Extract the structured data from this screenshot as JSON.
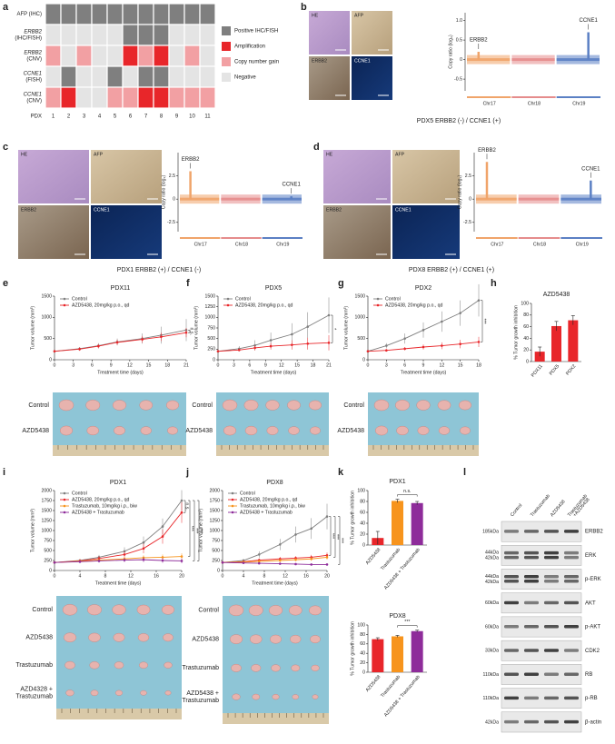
{
  "chart_data": [
    {
      "type": "heatmap",
      "panel": "a",
      "xlabel": "PDX",
      "columns": [
        1,
        2,
        3,
        4,
        5,
        6,
        7,
        8,
        9,
        10,
        11
      ],
      "legend": [
        {
          "label": "Positive IHC/FISH",
          "color": "#7f7f7f"
        },
        {
          "label": "Amplification",
          "color": "#e8262a"
        },
        {
          "label": "Copy number gain",
          "color": "#f2a0a3"
        },
        {
          "label": "Negative",
          "color": "#e4e4e4"
        }
      ],
      "rows": [
        {
          "label": [
            "AFP (IHC)"
          ],
          "values": [
            0,
            0,
            0,
            0,
            0,
            0,
            0,
            0,
            0,
            0,
            0
          ]
        },
        {
          "label": [
            "ERBB2",
            "(IHC/FISH)"
          ],
          "values": [
            3,
            3,
            3,
            3,
            3,
            0,
            0,
            0,
            3,
            3,
            3
          ]
        },
        {
          "label": [
            "ERBB2",
            "(CNV)"
          ],
          "values": [
            2,
            3,
            2,
            3,
            3,
            1,
            2,
            1,
            3,
            2,
            3
          ]
        },
        {
          "label": [
            "CCNE1",
            "(FISH)"
          ],
          "values": [
            3,
            0,
            3,
            3,
            0,
            3,
            0,
            0,
            3,
            3,
            3
          ]
        },
        {
          "label": [
            "CCNE1",
            "(CNV)"
          ],
          "values": [
            2,
            1,
            3,
            3,
            2,
            2,
            1,
            1,
            2,
            2,
            2
          ]
        }
      ]
    },
    {
      "type": "copy_number",
      "panel": "b",
      "images": [
        "HE",
        "AFP",
        "ERBB2",
        "CCNE1"
      ],
      "ylabel": "Copy ratio (log₂)",
      "ylim": [
        -0.8,
        1.2
      ],
      "yticks": [
        {
          "value": 1,
          "label": "1.0"
        },
        0.5,
        0,
        -0.5
      ],
      "chromosomes": [
        "Chr17",
        "Chr18",
        "Chr19"
      ],
      "peaks": [
        {
          "label": "ERBB2",
          "value": 0.2
        },
        {
          "label": "CCNE1",
          "value": 0.7
        }
      ],
      "caption": "PDX5  ERBB2 (-) / CCNE1 (+)"
    },
    {
      "type": "copy_number",
      "panel": "c",
      "images": [
        "HE",
        "AFP",
        "ERBB2",
        "CCNE1"
      ],
      "ylabel": "Copy ratio (log₂)",
      "ylim": [
        -3.5,
        5
      ],
      "yticks": [
        2.5,
        0,
        -2.5
      ],
      "chromosomes": [
        "Chr17",
        "Chr18",
        "Chr19"
      ],
      "peaks": [
        {
          "label": "ERBB2",
          "value": 3
        },
        {
          "label": "CCNE1",
          "value": 0.3
        }
      ],
      "caption": "PDX1  ERBB2 (+) / CCNE1 (-)"
    },
    {
      "type": "copy_number",
      "panel": "d",
      "images": [
        "HE",
        "AFP",
        "ERBB2",
        "CCNE1"
      ],
      "ylabel": "Copy ratio (log₂)",
      "ylim": [
        -3.5,
        5
      ],
      "yticks": [
        2.5,
        0,
        -2.5
      ],
      "chromosomes": [
        "Chr17",
        "Chr18",
        "Chr19"
      ],
      "peaks": [
        {
          "label": "ERBB2",
          "value": 4
        },
        {
          "label": "CCNE1",
          "value": 2
        }
      ],
      "caption": "PDX8  ERBB2 (+) / CCNE1 (+)"
    },
    {
      "type": "line",
      "panel": "e",
      "title": "PDX11",
      "xlabel": "Treatment time (days)",
      "ylabel": "Tumor volume (mm³)",
      "x": [
        0,
        4,
        7,
        10,
        14,
        17,
        21
      ],
      "xlim": [
        0,
        21
      ],
      "xticks": [
        0,
        3,
        6,
        9,
        12,
        15,
        18,
        21
      ],
      "ylim": [
        0,
        1500
      ],
      "yticks": [
        0,
        500,
        1000,
        1500
      ],
      "series": [
        {
          "name": "Control",
          "color": "#7f7f7f",
          "values": [
            200,
            260,
            330,
            420,
            500,
            580,
            700
          ],
          "errors": [
            20,
            40,
            60,
            80,
            120,
            200,
            260
          ]
        },
        {
          "name": "AZD5438, 20mg/kg p.o., qd",
          "color": "#e8262a",
          "values": [
            200,
            250,
            320,
            410,
            480,
            540,
            640
          ],
          "errors": [
            20,
            40,
            50,
            60,
            80,
            100,
            110
          ]
        }
      ],
      "annotations": [
        "n.s."
      ]
    },
    {
      "type": "line",
      "panel": "f",
      "title": "PDX5",
      "xlabel": "Treatment time (days)",
      "ylabel": "Tumor volume (mm³)",
      "x": [
        0,
        4,
        7,
        10,
        14,
        17,
        21
      ],
      "xlim": [
        0,
        21
      ],
      "xticks": [
        0,
        3,
        6,
        9,
        12,
        15,
        18,
        21
      ],
      "ylim": [
        0,
        1500
      ],
      "yticks": [
        0,
        250,
        500,
        750,
        1000,
        1250,
        1500
      ],
      "series": [
        {
          "name": "Control",
          "color": "#7f7f7f",
          "values": [
            200,
            260,
            340,
            460,
            600,
            780,
            1050
          ],
          "errors": [
            20,
            60,
            120,
            180,
            260,
            340,
            420
          ]
        },
        {
          "name": "AZD5438, 20mg/kg p.o., qd",
          "color": "#e8262a",
          "values": [
            200,
            230,
            280,
            320,
            350,
            380,
            400
          ],
          "errors": [
            20,
            30,
            60,
            80,
            110,
            140,
            180
          ]
        }
      ],
      "annotations": [
        "*"
      ]
    },
    {
      "type": "line",
      "panel": "g",
      "title": "PDX2",
      "xlabel": "Treatment time (days)",
      "ylabel": "Tumor volume (mm³)",
      "x": [
        0,
        3,
        6,
        9,
        12,
        15,
        18
      ],
      "xlim": [
        0,
        18
      ],
      "xticks": [
        0,
        3,
        6,
        9,
        12,
        15,
        18
      ],
      "ylim": [
        0,
        1500
      ],
      "yticks": [
        0,
        500,
        1000,
        1500
      ],
      "series": [
        {
          "name": "Control",
          "color": "#7f7f7f",
          "values": [
            200,
            330,
            500,
            700,
            900,
            1100,
            1400
          ],
          "errors": [
            20,
            60,
            120,
            180,
            240,
            300,
            380
          ]
        },
        {
          "name": "AZD5438, 20mg/kg p.o., qd",
          "color": "#e8262a",
          "values": [
            200,
            220,
            260,
            300,
            330,
            370,
            420
          ],
          "errors": [
            20,
            30,
            40,
            60,
            80,
            100,
            120
          ]
        }
      ],
      "annotations": [
        "***"
      ]
    },
    {
      "type": "bar",
      "panel": "h",
      "title": "AZD5438",
      "ylabel": "% Tumor growth inhibition",
      "categories": [
        "PDX11",
        "PDX5",
        "PDX2"
      ],
      "values": [
        17,
        61,
        71
      ],
      "errors": [
        8,
        8,
        8
      ],
      "colors": [
        "#e8262a",
        "#e8262a",
        "#e8262a"
      ],
      "ylim": [
        0,
        100
      ],
      "yticks": [
        0,
        20,
        40,
        60,
        80,
        100
      ]
    },
    {
      "type": "photo",
      "labels": [
        [
          "Control"
        ],
        [
          "AZD5438"
        ]
      ]
    },
    {
      "type": "photo",
      "labels": [
        [
          "Control"
        ],
        [
          "AZD5438"
        ]
      ]
    },
    {
      "type": "photo",
      "labels": [
        [
          "Control"
        ],
        [
          "AZD5438"
        ]
      ]
    },
    {
      "type": "line",
      "panel": "i",
      "title": "PDX1",
      "xlabel": "Treatment time (days)",
      "ylabel": "Tumor volume (mm³)",
      "x": [
        0,
        4,
        7,
        11,
        14,
        17,
        20
      ],
      "xlim": [
        0,
        20
      ],
      "xticks": [
        0,
        4,
        8,
        12,
        16,
        20
      ],
      "ylim": [
        0,
        2000
      ],
      "yticks": [
        0,
        250,
        500,
        750,
        1000,
        1250,
        1500,
        1750,
        2000
      ],
      "series": [
        {
          "name": "Control",
          "color": "#7f7f7f",
          "values": [
            200,
            250,
            330,
            480,
            700,
            1100,
            1750
          ],
          "errors": [
            20,
            40,
            60,
            100,
            150,
            200,
            260
          ]
        },
        {
          "name": "AZD5438, 20mg/kg p.o., qd",
          "color": "#e8262a",
          "values": [
            200,
            240,
            300,
            400,
            550,
            850,
            1450
          ],
          "errors": [
            20,
            40,
            60,
            80,
            120,
            180,
            260
          ]
        },
        {
          "name": "Trastuzumab, 10mg/kg i.p., biw",
          "color": "#f7941d",
          "values": [
            200,
            230,
            260,
            290,
            320,
            330,
            350
          ],
          "errors": [
            20,
            30,
            40,
            50,
            60,
            70,
            80
          ]
        },
        {
          "name": "AZD5438 + Trastuzumab",
          "color": "#8e2c9a",
          "values": [
            200,
            220,
            240,
            260,
            270,
            250,
            240
          ],
          "errors": [
            20,
            30,
            40,
            50,
            60,
            60,
            60
          ]
        }
      ],
      "annotations": [
        "n.s.",
        "***",
        "***",
        "***"
      ]
    },
    {
      "type": "line",
      "panel": "j",
      "title": "PDX8",
      "xlabel": "Treatment time (days)",
      "ylabel": "Tumor volume (mm³)",
      "x": [
        0,
        4,
        7,
        11,
        14,
        17,
        20
      ],
      "xlim": [
        0,
        20
      ],
      "xticks": [
        0,
        4,
        8,
        12,
        16,
        20
      ],
      "ylim": [
        0,
        2000
      ],
      "yticks": [
        0,
        250,
        500,
        750,
        1000,
        1250,
        1500,
        1750,
        2000
      ],
      "series": [
        {
          "name": "Control",
          "color": "#7f7f7f",
          "values": [
            200,
            250,
            400,
            650,
            900,
            1050,
            1350
          ],
          "errors": [
            20,
            40,
            80,
            140,
            200,
            260,
            320
          ]
        },
        {
          "name": "AZD5438, 20mg/kg p.o., qd",
          "color": "#e8262a",
          "values": [
            200,
            220,
            260,
            290,
            310,
            330,
            380
          ],
          "errors": [
            20,
            30,
            40,
            50,
            50,
            60,
            70
          ]
        },
        {
          "name": "Trastuzumab, 10mg/kg i.p., biw",
          "color": "#f7941d",
          "values": [
            200,
            210,
            230,
            250,
            270,
            290,
            330
          ],
          "errors": [
            20,
            30,
            30,
            40,
            40,
            50,
            60
          ]
        },
        {
          "name": "AZD5438 + Trastuzumab",
          "color": "#8e2c9a",
          "values": [
            200,
            190,
            180,
            170,
            160,
            150,
            150
          ],
          "errors": [
            20,
            20,
            20,
            20,
            20,
            20,
            20
          ]
        }
      ],
      "annotations": [
        "***",
        "***",
        "***"
      ]
    },
    {
      "type": "bar",
      "panel": "k",
      "title": "PDX1",
      "ylabel": "% Tumor growth inhibition",
      "categories": [
        "AZD5438",
        "Trastuzumab",
        "AZD5438 + Trastuzumab"
      ],
      "values": [
        13,
        81,
        77
      ],
      "errors": [
        12,
        3,
        3
      ],
      "colors": [
        "#e8262a",
        "#f7941d",
        "#8e2c9a"
      ],
      "ylim": [
        0,
        100
      ],
      "yticks": [
        0,
        20,
        40,
        60,
        80,
        100
      ],
      "annotation": "n.s."
    },
    {
      "type": "bar",
      "title": "PDX8",
      "ylabel": "% Tumor growth inhibition",
      "categories": [
        "AZD5438",
        "Trastuzumab",
        "AZD5438 + Trastuzumab"
      ],
      "values": [
        70,
        76,
        87
      ],
      "errors": [
        3,
        2,
        2
      ],
      "colors": [
        "#e8262a",
        "#f7941d",
        "#8e2c9a"
      ],
      "ylim": [
        0,
        100
      ],
      "yticks": [
        0,
        20,
        40,
        60,
        80,
        100
      ],
      "annotation": "***"
    },
    {
      "type": "photo",
      "labels": [
        [
          "Control"
        ],
        [
          "AZD5438"
        ],
        [
          "Trastuzumab"
        ],
        [
          "AZD4328 +",
          "Trastuzumab"
        ]
      ]
    },
    {
      "type": "photo",
      "labels": [
        [
          "Control"
        ],
        [
          "AZD5438"
        ],
        [
          "Trastuzumab"
        ],
        [
          "AZD5438 +",
          "Trastuzumab"
        ]
      ]
    },
    {
      "type": "blot",
      "panel": "l",
      "lanes": [
        [
          "Control"
        ],
        [
          "Trastuzumab"
        ],
        [
          "AZD5438"
        ],
        [
          "Trastuzumab",
          "+AZD5438"
        ]
      ],
      "rows": [
        {
          "kda": [
            "185kDa"
          ],
          "name": "ERBB2"
        },
        {
          "kda": [
            "44kDa",
            "42kDa"
          ],
          "name": "ERK"
        },
        {
          "kda": [
            "44kDa",
            "42kDa"
          ],
          "name": "p-ERK"
        },
        {
          "kda": [
            "60kDa"
          ],
          "name": "AKT"
        },
        {
          "kda": [
            "60kDa"
          ],
          "name": "p-AKT"
        },
        {
          "kda": [
            "33kDa"
          ],
          "name": "CDK2"
        },
        {
          "kda": [
            "110kDa"
          ],
          "name": "RB"
        },
        {
          "kda": [
            "110kDa"
          ],
          "name": "p-RB"
        },
        {
          "kda": [
            "42kDa"
          ],
          "name": "β-actin"
        }
      ]
    }
  ]
}
